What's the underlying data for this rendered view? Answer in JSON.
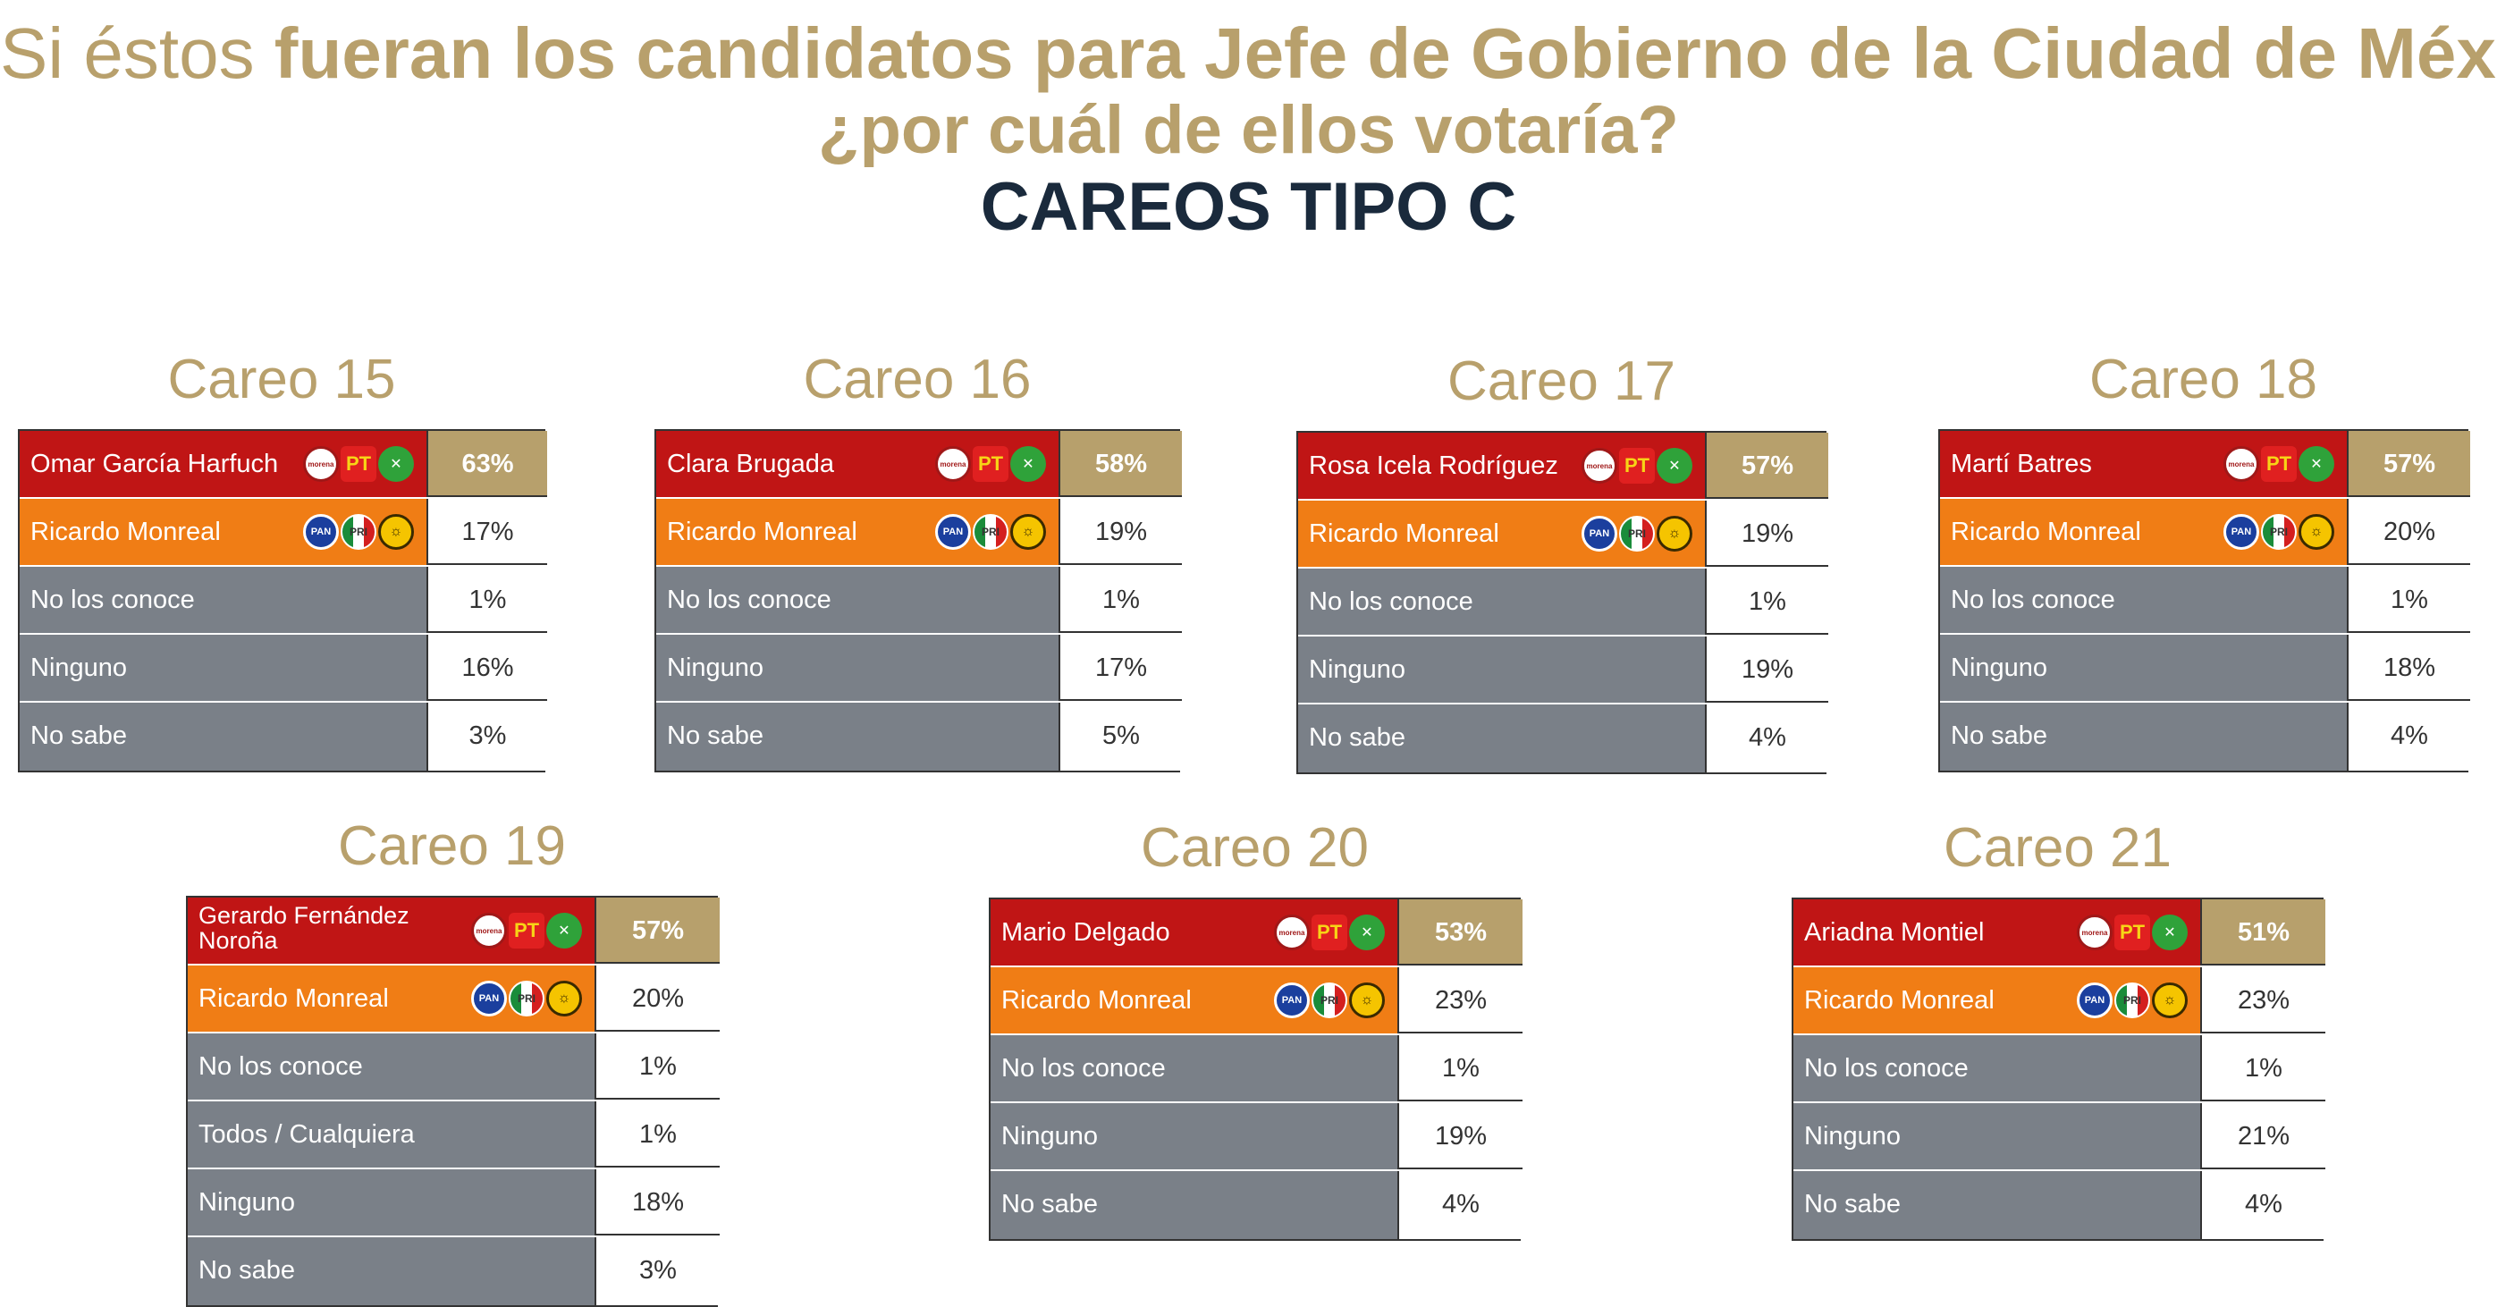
{
  "header": {
    "line1_prefix": "Si éstos ",
    "line1_bold": "fueran los candidatos para Jefe de Gobierno de la Ciudad de México,",
    "line2": "¿por cuál de ellos votaría?",
    "line3": "CAREOS TIPO C"
  },
  "icons": {
    "winner_logos": [
      "morena-logo-icon",
      "pt-logo-icon",
      "pvem-logo-icon"
    ],
    "second_logos": [
      "pan-logo-icon",
      "pri-logo-icon",
      "prd-logo-icon"
    ],
    "glyphs": {
      "morena": "morena",
      "pt": "PT",
      "pvem": "✕",
      "pan": "PAN",
      "pri": "PRI",
      "prd": "☼"
    }
  },
  "colors": {
    "winner": "#c01515",
    "second": "#f07d15",
    "other": "#7a8088",
    "accent": "#b7a06c",
    "dark": "#1a2a3c"
  },
  "chart_data": [
    {
      "type": "table",
      "title": "Careo 15",
      "rows": [
        {
          "label": "Omar García Harfuch",
          "value": "63%"
        },
        {
          "label": "Ricardo Monreal",
          "value": "17%"
        },
        {
          "label": "No los conoce",
          "value": "1%"
        },
        {
          "label": "Ninguno",
          "value": "16%"
        },
        {
          "label": "No sabe",
          "value": "3%"
        }
      ]
    },
    {
      "type": "table",
      "title": "Careo 16",
      "rows": [
        {
          "label": "Clara Brugada",
          "value": "58%"
        },
        {
          "label": "Ricardo Monreal",
          "value": "19%"
        },
        {
          "label": "No los conoce",
          "value": "1%"
        },
        {
          "label": "Ninguno",
          "value": "17%"
        },
        {
          "label": "No sabe",
          "value": "5%"
        }
      ]
    },
    {
      "type": "table",
      "title": "Careo 17",
      "rows": [
        {
          "label": "Rosa Icela Rodríguez",
          "value": "57%"
        },
        {
          "label": "Ricardo Monreal",
          "value": "19%"
        },
        {
          "label": "No los conoce",
          "value": "1%"
        },
        {
          "label": "Ninguno",
          "value": "19%"
        },
        {
          "label": "No sabe",
          "value": "4%"
        }
      ]
    },
    {
      "type": "table",
      "title": "Careo 18",
      "rows": [
        {
          "label": "Martí Batres",
          "value": "57%"
        },
        {
          "label": "Ricardo Monreal",
          "value": "20%"
        },
        {
          "label": "No los conoce",
          "value": "1%"
        },
        {
          "label": "Ninguno",
          "value": "18%"
        },
        {
          "label": "No sabe",
          "value": "4%"
        }
      ]
    },
    {
      "type": "table",
      "title": "Careo 19",
      "rows": [
        {
          "label": "Gerardo Fernández Noroña",
          "value": "57%"
        },
        {
          "label": "Ricardo Monreal",
          "value": "20%"
        },
        {
          "label": "No los conoce",
          "value": "1%"
        },
        {
          "label": "Todos / Cualquiera",
          "value": "1%"
        },
        {
          "label": "Ninguno",
          "value": "18%"
        },
        {
          "label": "No sabe",
          "value": "3%"
        }
      ]
    },
    {
      "type": "table",
      "title": "Careo 20",
      "rows": [
        {
          "label": "Mario Delgado",
          "value": "53%"
        },
        {
          "label": "Ricardo Monreal",
          "value": "23%"
        },
        {
          "label": "No los conoce",
          "value": "1%"
        },
        {
          "label": "Ninguno",
          "value": "19%"
        },
        {
          "label": "No sabe",
          "value": "4%"
        }
      ]
    },
    {
      "type": "table",
      "title": "Careo 21",
      "rows": [
        {
          "label": "Ariadna Montiel",
          "value": "51%"
        },
        {
          "label": "Ricardo Monreal",
          "value": "23%"
        },
        {
          "label": "No los conoce",
          "value": "1%"
        },
        {
          "label": "Ninguno",
          "value": "21%"
        },
        {
          "label": "No sabe",
          "value": "4%"
        }
      ]
    }
  ]
}
